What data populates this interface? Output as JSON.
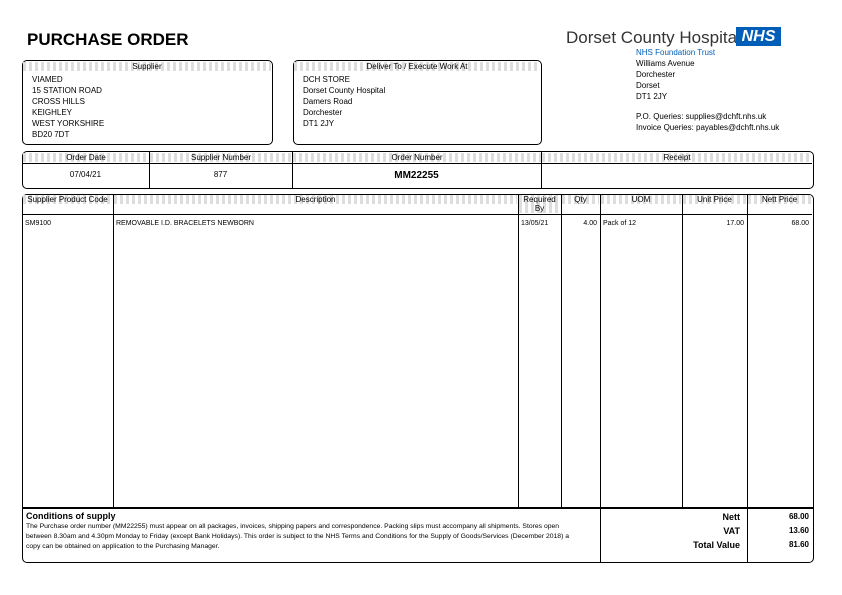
{
  "header": {
    "title": "PURCHASE ORDER",
    "organisation": "Dorset County Hospital",
    "badge": "NHS",
    "trust": "NHS Foundation Trust",
    "address": [
      "Williams Avenue",
      "Dorchester",
      "Dorset",
      "DT1 2JY"
    ],
    "queries": [
      "P.O. Queries: supplies@dchft.nhs.uk",
      "Invoice Queries: payables@dchft.nhs.uk"
    ]
  },
  "supplier": {
    "heading": "Supplier",
    "lines": [
      "VIAMED",
      "15 STATION ROAD",
      "CROSS HILLS",
      "KEIGHLEY",
      "WEST YORKSHIRE",
      "BD20 7DT"
    ]
  },
  "delivery": {
    "heading": "Deliver To / Execute Work At",
    "lines": [
      "DCH STORE",
      "Dorset County Hospital",
      "Damers Road",
      "Dorchester",
      "DT1 2JY"
    ]
  },
  "order": {
    "headings": [
      "Order Date",
      "Supplier Number",
      "Order Number",
      "Receipt"
    ],
    "values": [
      "07/04/21",
      "877",
      "MM22255"
    ]
  },
  "items": {
    "headings": [
      "Supplier Product Code",
      "Description",
      "Required By",
      "Qty",
      "UOM",
      "Unit Price",
      "Nett Price"
    ],
    "rows": [
      [
        "SM9100",
        "REMOVABLE I.D. BRACELETS NEWBORN",
        "13/05/21",
        "4.00",
        "Pack of 12",
        "17.00",
        "68.00"
      ]
    ]
  },
  "conditions": {
    "heading": "Conditions of supply",
    "text": "The Purchase order number (MM22255) must appear on all packages, invoices, shipping papers and correspondence. Packing slips must accompany all shipments. Stores open between 8.30am and 4.30pm Monday to Friday (except Bank Holidays). This order is subject to the NHS Terms and Conditions for the Supply of Goods/Services (December 2018) a copy can be obtained on application to the Purchasing Manager."
  },
  "totals": {
    "labels": [
      "Nett",
      "VAT",
      "Total Value"
    ],
    "values": [
      "68.00",
      "13.60",
      "81.60"
    ]
  }
}
